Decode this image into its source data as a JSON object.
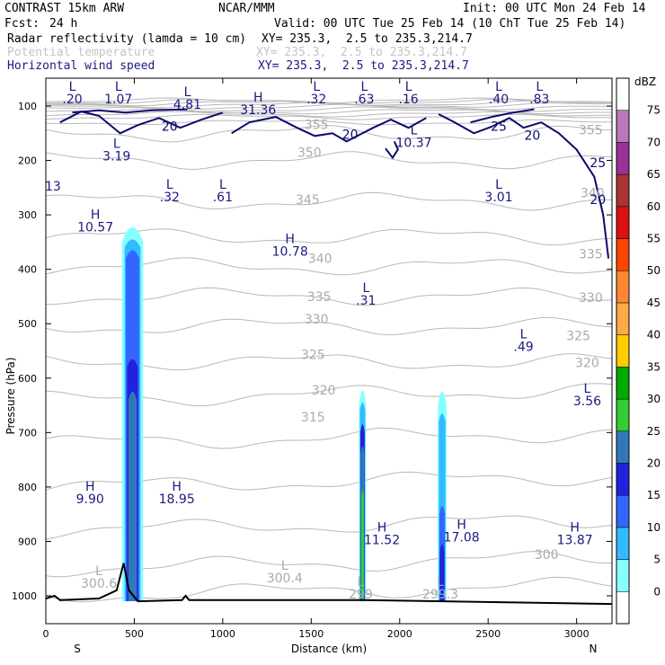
{
  "header": {
    "model": "CONTRAST 15km ARW",
    "org": "NCAR/MMM",
    "init": "Init: 00 UTC Mon 24 Feb 14",
    "fcst_label": "Fcst:",
    "fcst_value": "24 h",
    "valid": "Valid: 00 UTC Tue 25 Feb 14 (10 ChT Tue 25 Feb 14)",
    "fields": [
      {
        "name": "Radar reflectivity (lamda = 10 cm)",
        "xy": "XY= 235.3,  2.5 to 235.3,214.7"
      },
      {
        "name": "Potential temperature",
        "xy": "XY= 235.3,  2.5 to 235.3,214.7"
      },
      {
        "name": "Horizontal wind speed",
        "xy": "XY= 235.3,  2.5 to 235.3,214.7"
      }
    ]
  },
  "chart_data": {
    "type": "heatmap",
    "description_fields": [
      "reflectivity shading",
      "potential temperature contours",
      "wind speed contours"
    ],
    "xlabel": "Distance (km)",
    "ylabel": "Pressure (hPa)",
    "xlim": [
      0,
      3200
    ],
    "ylim": [
      1040,
      50
    ],
    "x_ticks": [
      "0",
      "500",
      "1000",
      "1500",
      "2000",
      "2500",
      "3000"
    ],
    "y_ticks": [
      "100",
      "200",
      "300",
      "400",
      "500",
      "600",
      "700",
      "800",
      "900",
      "1000"
    ],
    "x_end_labels": {
      "left": "S",
      "right": "N"
    },
    "colorbar": {
      "unit": "dBZ",
      "levels": [
        "0",
        "5",
        "10",
        "15",
        "20",
        "25",
        "30",
        "35",
        "40",
        "45",
        "50",
        "55",
        "60",
        "65",
        "70",
        "75"
      ],
      "colors": [
        "#ffffff",
        "#88ffff",
        "#33bbff",
        "#3366ff",
        "#2222dd",
        "#3377bb",
        "#33cc33",
        "#00aa00",
        "#ffcc00",
        "#ffaa44",
        "#ff8833",
        "#ff4400",
        "#dd1111",
        "#aa3333",
        "#993399",
        "#bb77bb",
        "#ffffff"
      ]
    },
    "theta_labels": [
      {
        "v": "355",
        "x": 1530,
        "p": 142
      },
      {
        "v": "350",
        "x": 1490,
        "p": 193
      },
      {
        "v": "345",
        "x": 1480,
        "p": 280
      },
      {
        "v": "340",
        "x": 1550,
        "p": 388
      },
      {
        "v": "335",
        "x": 1545,
        "p": 458
      },
      {
        "v": "330",
        "x": 1530,
        "p": 500
      },
      {
        "v": "325",
        "x": 1510,
        "p": 565
      },
      {
        "v": "320",
        "x": 1570,
        "p": 630
      },
      {
        "v": "315",
        "x": 1510,
        "p": 680
      },
      {
        "v": "355",
        "x": 3080,
        "p": 152
      },
      {
        "v": "340",
        "x": 3090,
        "p": 268
      },
      {
        "v": "335",
        "x": 3080,
        "p": 380
      },
      {
        "v": "330",
        "x": 3080,
        "p": 460
      },
      {
        "v": "325",
        "x": 3010,
        "p": 530
      },
      {
        "v": "320",
        "x": 3060,
        "p": 580
      },
      {
        "v": "300",
        "x": 2830,
        "p": 932
      }
    ],
    "theta_lines": [
      300,
      303,
      306,
      310,
      315,
      320,
      325,
      330,
      335,
      340,
      345,
      350,
      355
    ],
    "wind_labels": [
      {
        "v": "20",
        "x": 700,
        "p": 145
      },
      {
        "v": "20",
        "x": 1720,
        "p": 160
      },
      {
        "v": "25",
        "x": 2560,
        "p": 145
      },
      {
        "v": "20",
        "x": 2750,
        "p": 162
      },
      {
        "v": "25",
        "x": 3120,
        "p": 212
      },
      {
        "v": "20",
        "x": 3120,
        "p": 280
      }
    ],
    "extrema": [
      {
        "t": "L",
        "v": ".20",
        "x": 150,
        "p": 95
      },
      {
        "t": "L",
        "v": "1.07",
        "x": 410,
        "p": 95
      },
      {
        "t": "L",
        "v": "4.81",
        "x": 800,
        "p": 105
      },
      {
        "t": "H",
        "v": "31.36",
        "x": 1200,
        "p": 115
      },
      {
        "t": "L",
        "v": ".32",
        "x": 1530,
        "p": 95
      },
      {
        "t": "L",
        "v": ".63",
        "x": 1800,
        "p": 95
      },
      {
        "t": "L",
        "v": ".16",
        "x": 2050,
        "p": 95
      },
      {
        "t": "L",
        "v": ".40",
        "x": 2560,
        "p": 95
      },
      {
        "t": "L",
        "v": ".83",
        "x": 2790,
        "p": 95
      },
      {
        "t": "L",
        "v": "10.37",
        "x": 2080,
        "p": 175
      },
      {
        "t": "L",
        "v": "3.19",
        "x": 400,
        "p": 200
      },
      {
        "t": "",
        "v": "13",
        "x": 40,
        "p": 255
      },
      {
        "t": "L",
        "v": ".32",
        "x": 700,
        "p": 275
      },
      {
        "t": "L",
        "v": ".61",
        "x": 1000,
        "p": 275
      },
      {
        "t": "L",
        "v": "3.01",
        "x": 2560,
        "p": 275
      },
      {
        "t": "H",
        "v": "10.57",
        "x": 280,
        "p": 330
      },
      {
        "t": "H",
        "v": "10.78",
        "x": 1380,
        "p": 375
      },
      {
        "t": "L",
        "v": ".31",
        "x": 1810,
        "p": 465
      },
      {
        "t": "L",
        "v": ".49",
        "x": 2700,
        "p": 550
      },
      {
        "t": "L",
        "v": "3.56",
        "x": 3060,
        "p": 650
      },
      {
        "t": "H",
        "v": "9.90",
        "x": 250,
        "p": 830
      },
      {
        "t": "H",
        "v": "18.95",
        "x": 740,
        "p": 830
      },
      {
        "t": "H",
        "v": "11.52",
        "x": 1900,
        "p": 905
      },
      {
        "t": "H",
        "v": "17.08",
        "x": 2350,
        "p": 900
      },
      {
        "t": "H",
        "v": "13.87",
        "x": 2990,
        "p": 905
      }
    ],
    "theta_minima": [
      {
        "t": "L",
        "v": "300.6",
        "x": 300,
        "p": 985
      },
      {
        "t": "L",
        "v": "300.4",
        "x": 1350,
        "p": 975
      },
      {
        "t": "L",
        "v": "299",
        "x": 1780,
        "p": 1005
      },
      {
        "t": "L",
        "v": "299.3",
        "x": 2230,
        "p": 1005
      }
    ],
    "reflectivity_columns": [
      {
        "x": 490,
        "half_width_km": 60,
        "top_p": 310,
        "core": [
          {
            "lvl": 10,
            "top": 340
          },
          {
            "lvl": 15,
            "top": 360
          },
          {
            "lvl": 20,
            "top": 560
          },
          {
            "lvl": 25,
            "top": 620
          }
        ]
      },
      {
        "x": 1790,
        "half_width_km": 20,
        "top_p": 610,
        "core": [
          {
            "lvl": 10,
            "top": 640
          },
          {
            "lvl": 20,
            "top": 680
          },
          {
            "lvl": 25,
            "top": 720
          },
          {
            "lvl": 30,
            "top": 800
          }
        ]
      },
      {
        "x": 2240,
        "half_width_km": 25,
        "top_p": 612,
        "core": [
          {
            "lvl": 10,
            "top": 660
          },
          {
            "lvl": 15,
            "top": 830
          },
          {
            "lvl": 20,
            "top": 900
          }
        ]
      }
    ],
    "terrain": [
      [
        0,
        1005
      ],
      [
        50,
        1000
      ],
      [
        80,
        1008
      ],
      [
        300,
        1005
      ],
      [
        400,
        990
      ],
      [
        440,
        940
      ],
      [
        470,
        990
      ],
      [
        520,
        1010
      ],
      [
        770,
        1008
      ],
      [
        790,
        1000
      ],
      [
        810,
        1008
      ],
      [
        1800,
        1008
      ],
      [
        3200,
        1015
      ]
    ]
  }
}
